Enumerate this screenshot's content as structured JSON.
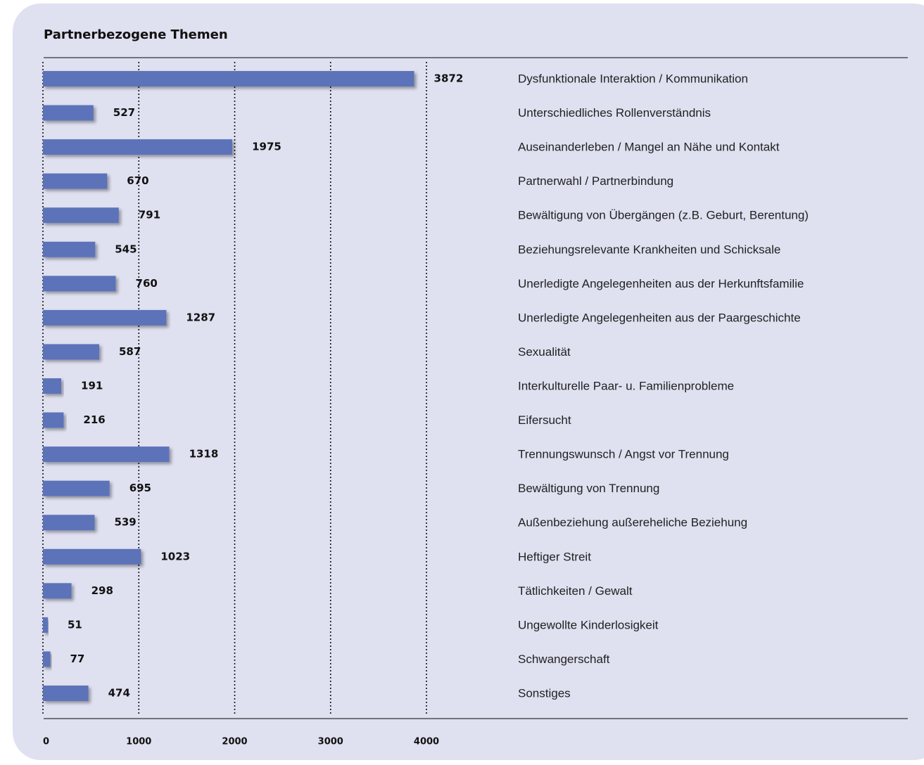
{
  "chart_data": {
    "type": "bar",
    "orientation": "horizontal",
    "title": "Partnerbezogene Themen",
    "categories": [
      "Dysfunktionale Interaktion / Kommunikation",
      "Unterschiedliches  Rollenverständnis",
      "Auseinanderleben / Mangel an Nähe und Kontakt",
      "Partnerwahl / Partnerbindung",
      "Bewältigung von Übergängen (z.B. Geburt, Berentung)",
      "Beziehungsrelevante Krankheiten und Schicksale",
      "Unerledigte Angelegenheiten aus der Herkunftsfamilie",
      "Unerledigte Angelegenheiten aus der Paargeschichte",
      "Sexualität",
      "Interkulturelle Paar- u. Familienprobleme",
      "Eifersucht",
      "Trennungswunsch / Angst vor Trennung",
      "Bewältigung von Trennung",
      "Außenbeziehung außereheliche Beziehung",
      "Heftiger Streit",
      "Tätlichkeiten / Gewalt",
      "Ungewollte Kinderlosigkeit",
      "Schwangerschaft",
      "Sonstiges"
    ],
    "values": [
      3872,
      527,
      1975,
      670,
      791,
      545,
      760,
      1287,
      587,
      191,
      216,
      1318,
      695,
      539,
      1023,
      298,
      51,
      77,
      474
    ],
    "color": "#5b73b9",
    "xlim": [
      0,
      4000
    ],
    "xticks": [
      0,
      1000,
      2000,
      3000,
      4000
    ],
    "grid": true
  }
}
